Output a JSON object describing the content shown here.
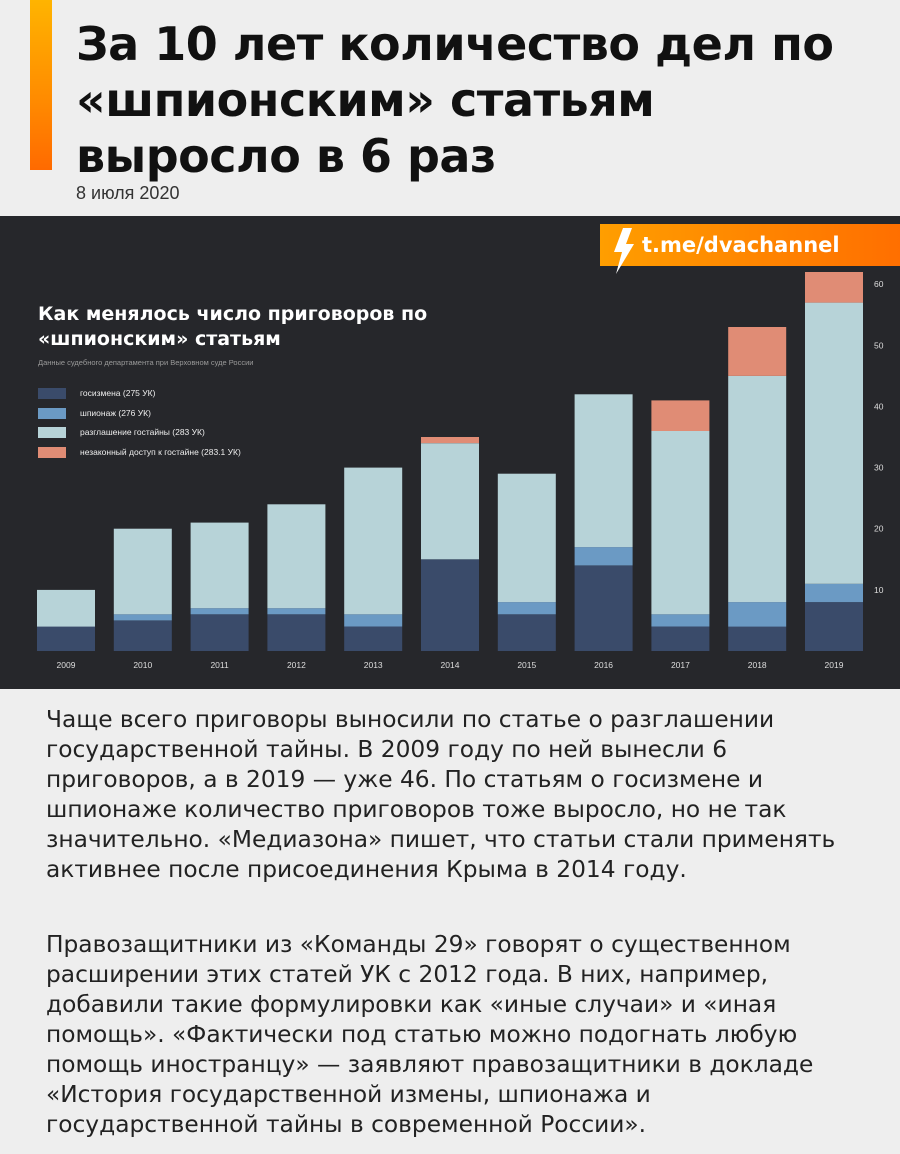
{
  "article": {
    "headline": "За 10 лет количество дел по «шпионским» статьям выросло в 6 раз",
    "date": "8 июля 2020",
    "paragraphs": [
      "Чаще всего приговоры выносили по статье о разглашении государственной тайны. В 2009 году по ней вынесли 6 приговоров, а в 2019 — уже 46. По статьям о госизмене и шпионаже количество приговоров тоже выросло, но не так значительно. «Медиазона» пишет, что статьи стали применять активнее после присоединения Крыма в 2014 году.",
      "Правозащитники из «Команды 29» говорят о существенном расширении этих статей УК с 2012 года. В них, например, добавили такие формулировки как «иные случаи» и «иная помощь». «Фактически под статью можно подогнать любую помощь иностранцу» — заявляют правозащитники в докладе «История государственной измены, шпионажа и государственной тайны в современной России»."
    ]
  },
  "brand": {
    "label": "t.me/dvachannel",
    "icon": "lightning-bolt-icon",
    "colors": {
      "bg_start": "#ff9e00",
      "bg_end": "#ff6f00"
    }
  },
  "colors": {
    "accent": "#ff8a00",
    "chart_bg": "#26272b"
  },
  "chart_data": {
    "type": "bar",
    "stacked": true,
    "title": "Как менялось число приговоров по «шпионским» статьям",
    "subtitle": "Данные судебного департамента при Верховном суде России",
    "categories": [
      "2009",
      "2010",
      "2011",
      "2012",
      "2013",
      "2014",
      "2015",
      "2016",
      "2017",
      "2018",
      "2019"
    ],
    "series": [
      {
        "name": "госизмена (275 УК)",
        "color": "#3a4b6a",
        "values": [
          4,
          5,
          6,
          6,
          4,
          15,
          6,
          14,
          4,
          4,
          8
        ]
      },
      {
        "name": "шпионаж (276 УК)",
        "color": "#6b9ac4",
        "values": [
          0,
          1,
          1,
          1,
          2,
          0,
          2,
          3,
          2,
          4,
          3
        ]
      },
      {
        "name": "разглашение гостайны (283 УК)",
        "color": "#b7d3d8",
        "values": [
          6,
          14,
          14,
          17,
          24,
          19,
          21,
          25,
          30,
          37,
          46
        ]
      },
      {
        "name": "незаконный доступ к гостайне (283.1 УК)",
        "color": "#e08c75",
        "values": [
          0,
          0,
          0,
          0,
          0,
          1,
          0,
          0,
          5,
          8,
          5
        ]
      }
    ],
    "yticks": [
      10,
      20,
      30,
      40,
      50,
      60
    ],
    "ylim": [
      0,
      62
    ],
    "y_axis_side": "right",
    "grid": false,
    "legend_position": "top-left"
  }
}
